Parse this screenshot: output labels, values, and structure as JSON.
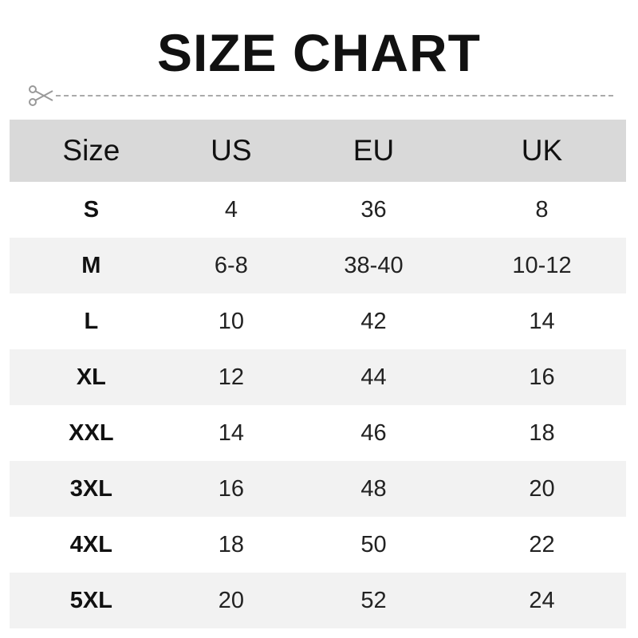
{
  "title": "SIZE CHART",
  "icons": {
    "cut": "scissors-icon"
  },
  "colors": {
    "header_bg": "#d9d9d9",
    "stripe_bg": "#f2f2f2"
  },
  "table": {
    "headers": [
      "Size",
      "US",
      "EU",
      "UK"
    ],
    "rows": [
      [
        "S",
        "4",
        "36",
        "8"
      ],
      [
        "M",
        "6-8",
        "38-40",
        "10-12"
      ],
      [
        "L",
        "10",
        "42",
        "14"
      ],
      [
        "XL",
        "12",
        "44",
        "16"
      ],
      [
        "XXL",
        "14",
        "46",
        "18"
      ],
      [
        "3XL",
        "16",
        "48",
        "20"
      ],
      [
        "4XL",
        "18",
        "50",
        "22"
      ],
      [
        "5XL",
        "20",
        "52",
        "24"
      ]
    ]
  }
}
